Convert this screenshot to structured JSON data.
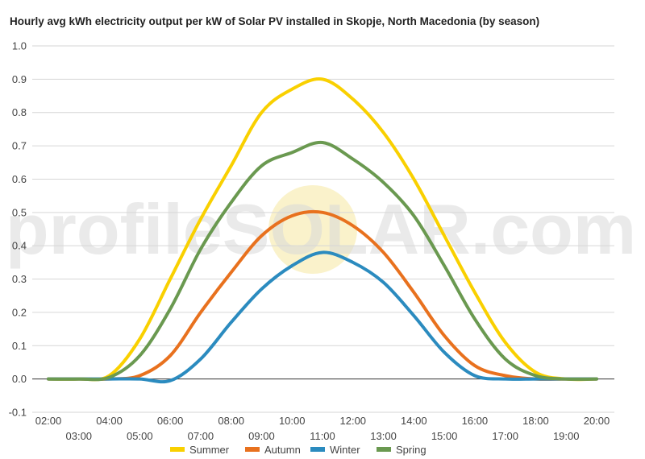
{
  "watermark": "profileSOLAR.com",
  "chart_data": {
    "type": "line",
    "title": "Hourly avg kWh electricity output per kW of Solar PV installed in Skopje, North Macedonia (by season)",
    "xlabel": "",
    "ylabel": "",
    "ylim": [
      -0.1,
      1.0
    ],
    "yticks": [
      "1.0",
      "0.9",
      "0.8",
      "0.7",
      "0.6",
      "0.5",
      "0.4",
      "0.3",
      "0.2",
      "0.1",
      "0.0",
      "-0.1"
    ],
    "x": [
      "02:00",
      "03:00",
      "04:00",
      "05:00",
      "06:00",
      "07:00",
      "08:00",
      "09:00",
      "10:00",
      "11:00",
      "12:00",
      "13:00",
      "14:00",
      "15:00",
      "16:00",
      "17:00",
      "18:00",
      "19:00",
      "20:00"
    ],
    "grid": true,
    "legend_position": "bottom",
    "series": [
      {
        "name": "Summer",
        "color": "#f9d000",
        "values": [
          0,
          0,
          0.01,
          0.12,
          0.3,
          0.48,
          0.64,
          0.8,
          0.87,
          0.9,
          0.84,
          0.74,
          0.6,
          0.43,
          0.26,
          0.11,
          0.02,
          0.0,
          0.0
        ]
      },
      {
        "name": "Autumn",
        "color": "#e8711e",
        "values": [
          0,
          0,
          0,
          0.01,
          0.07,
          0.2,
          0.32,
          0.43,
          0.49,
          0.5,
          0.46,
          0.38,
          0.26,
          0.13,
          0.04,
          0.01,
          0.0,
          0.0,
          0.0
        ]
      },
      {
        "name": "Winter",
        "color": "#2b8bbf",
        "values": [
          0,
          0,
          0,
          0,
          -0.005,
          0.06,
          0.17,
          0.27,
          0.34,
          0.38,
          0.35,
          0.29,
          0.19,
          0.08,
          0.01,
          0.0,
          0.0,
          0.0,
          0.0
        ]
      },
      {
        "name": "Spring",
        "color": "#6a9950",
        "values": [
          0,
          0,
          0.005,
          0.07,
          0.21,
          0.39,
          0.53,
          0.64,
          0.68,
          0.71,
          0.66,
          0.59,
          0.49,
          0.34,
          0.18,
          0.06,
          0.01,
          0.0,
          0.0
        ]
      }
    ]
  }
}
